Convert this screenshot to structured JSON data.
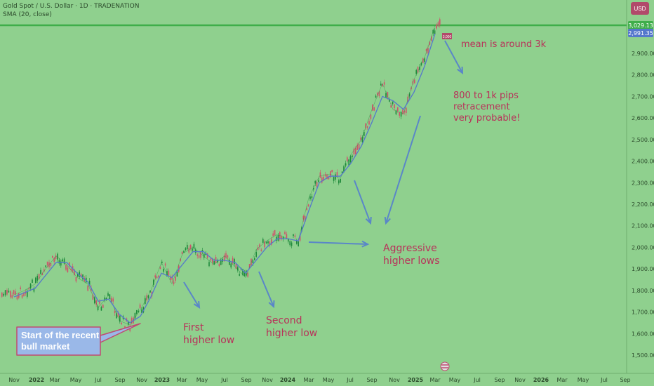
{
  "header": {
    "symbol": "Gold Spot / U.S. Dollar · 1D · TRADENATION",
    "indicator": "SMA (20, close)"
  },
  "currency_badge": "USD",
  "price_tags": {
    "last": "3,029.13",
    "sma": "2,991.35",
    "mean_marker": "3,000"
  },
  "colors": {
    "background": "#8fd08e",
    "candle_up": "#1f8a3c",
    "candle_down": "#d0506a",
    "sma_line": "#5577cc",
    "arrows": "#5a86c8",
    "annotation_text": "#b8325a",
    "price_line": "#3fae4a"
  },
  "annotations": {
    "start": "Start of the recent\nbull market",
    "first": "First\nhigher low",
    "second": "Second\nhigher low",
    "aggressive": "Aggressive\nhigher lows",
    "mean": "mean is around 3k",
    "retrace": "800 to 1k pips\nretracement\nvery probable!"
  },
  "chart_data": {
    "type": "line",
    "title": "Gold Spot / U.S. Dollar · 1D · TRADENATION",
    "xlabel": "",
    "ylabel": "",
    "x_ticks": [
      "Nov",
      "2022",
      "Mar",
      "May",
      "Jul",
      "Sep",
      "Nov",
      "2023",
      "Mar",
      "May",
      "Jul",
      "Sep",
      "Nov",
      "2024",
      "Mar",
      "May",
      "Jul",
      "Sep",
      "Nov",
      "2025",
      "Mar",
      "May",
      "Jul",
      "Sep",
      "Nov",
      "2026",
      "Mar",
      "May",
      "Jul",
      "Sep"
    ],
    "y_ticks": [
      1500,
      1600,
      1700,
      1800,
      1900,
      2000,
      2100,
      2200,
      2300,
      2400,
      2500,
      2600,
      2700,
      2800,
      2900
    ],
    "ylim": [
      1470,
      3150
    ],
    "grid": false,
    "legend": "none",
    "series": [
      {
        "name": "Gold Spot / U.S. Dollar",
        "x": [
          "2021-11",
          "2021-12",
          "2022-01",
          "2022-02",
          "2022-03",
          "2022-04",
          "2022-05",
          "2022-06",
          "2022-07",
          "2022-08",
          "2022-09",
          "2022-10",
          "2022-11",
          "2022-12",
          "2023-01",
          "2023-02",
          "2023-03",
          "2023-04",
          "2023-05",
          "2023-06",
          "2023-07",
          "2023-08",
          "2023-09",
          "2023-10",
          "2023-11",
          "2023-12",
          "2024-01",
          "2024-02",
          "2024-03",
          "2024-04",
          "2024-05",
          "2024-06",
          "2024-07",
          "2024-08",
          "2024-09",
          "2024-10",
          "2024-11",
          "2024-12",
          "2025-01",
          "2025-02",
          "2025-03"
        ],
        "values": [
          1780,
          1800,
          1830,
          1900,
          1960,
          1920,
          1860,
          1830,
          1720,
          1780,
          1660,
          1640,
          1710,
          1800,
          1930,
          1830,
          1970,
          2000,
          1960,
          1920,
          1960,
          1910,
          1860,
          1990,
          2030,
          2060,
          2040,
          2030,
          2230,
          2330,
          2340,
          2320,
          2430,
          2500,
          2640,
          2760,
          2640,
          2620,
          2780,
          2880,
          3029
        ]
      },
      {
        "name": "SMA (20, close)",
        "x": [
          "2021-11",
          "2021-12",
          "2022-01",
          "2022-02",
          "2022-03",
          "2022-04",
          "2022-05",
          "2022-06",
          "2022-07",
          "2022-08",
          "2022-09",
          "2022-10",
          "2022-11",
          "2022-12",
          "2023-01",
          "2023-02",
          "2023-03",
          "2023-04",
          "2023-05",
          "2023-06",
          "2023-07",
          "2023-08",
          "2023-09",
          "2023-10",
          "2023-11",
          "2023-12",
          "2024-01",
          "2024-02",
          "2024-03",
          "2024-04",
          "2024-05",
          "2024-06",
          "2024-07",
          "2024-08",
          "2024-09",
          "2024-10",
          "2024-11",
          "2024-12",
          "2025-01",
          "2025-02",
          "2025-03"
        ],
        "values": [
          1770,
          1790,
          1810,
          1870,
          1930,
          1930,
          1880,
          1840,
          1750,
          1760,
          1690,
          1650,
          1680,
          1770,
          1880,
          1860,
          1920,
          1980,
          1980,
          1940,
          1940,
          1930,
          1880,
          1940,
          2000,
          2040,
          2040,
          2030,
          2170,
          2300,
          2330,
          2330,
          2390,
          2470,
          2580,
          2700,
          2680,
          2640,
          2720,
          2840,
          2991
        ]
      }
    ],
    "annotations": [
      {
        "text": "Start of the recent bull market",
        "x": "2022-11",
        "y": 1620
      },
      {
        "text": "First higher low",
        "x": "2023-03",
        "y": 1800
      },
      {
        "text": "Second higher low",
        "x": "2023-10",
        "y": 1830
      },
      {
        "text": "Aggressive higher lows",
        "x": "2024-06",
        "y": 2300
      },
      {
        "text": "mean is around 3k",
        "x": "2025-03",
        "y": 3000
      },
      {
        "text": "800 to 1k pips retracement very probable!",
        "x": "2025-04",
        "y": 2700
      }
    ]
  }
}
